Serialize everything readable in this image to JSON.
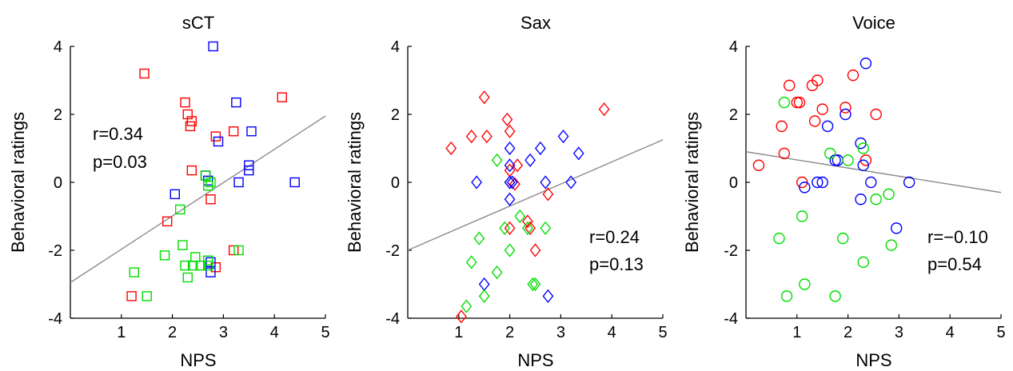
{
  "chart_data": [
    {
      "type": "scatter",
      "title": "sCT",
      "xlabel": "NPS",
      "ylabel": "Behavioral ratings",
      "xlim": [
        0,
        5
      ],
      "ylim": [
        -4,
        4
      ],
      "xticks": [
        "1",
        "2",
        "3",
        "4",
        "5"
      ],
      "yticks": [
        "-4",
        "-2",
        "0",
        "2",
        "4"
      ],
      "marker": "square",
      "annotation": [
        "r=0.34",
        "p=0.03"
      ],
      "fit_line": {
        "x": [
          0,
          5
        ],
        "y": [
          -2.95,
          1.95
        ]
      },
      "series": [
        {
          "color": "#ff0000",
          "points": [
            [
              1.45,
              3.2
            ],
            [
              2.25,
              2.35
            ],
            [
              2.3,
              2.0
            ],
            [
              2.35,
              1.65
            ],
            [
              2.38,
              1.8
            ],
            [
              3.2,
              1.5
            ],
            [
              2.85,
              1.35
            ],
            [
              4.15,
              2.5
            ],
            [
              2.38,
              0.35
            ],
            [
              2.75,
              -0.5
            ],
            [
              1.9,
              -1.15
            ],
            [
              3.2,
              -2.0
            ],
            [
              2.85,
              -2.5
            ],
            [
              1.2,
              -3.35
            ]
          ]
        },
        {
          "color": "#0000ff",
          "points": [
            [
              2.8,
              4.0
            ],
            [
              3.25,
              2.35
            ],
            [
              2.9,
              1.2
            ],
            [
              3.55,
              1.5
            ],
            [
              2.05,
              -0.35
            ],
            [
              2.65,
              0.2
            ],
            [
              2.7,
              0.05
            ],
            [
              3.3,
              0.0
            ],
            [
              3.5,
              0.35
            ],
            [
              3.5,
              0.5
            ],
            [
              4.4,
              0.0
            ],
            [
              2.75,
              -2.35
            ],
            [
              2.75,
              -2.65
            ]
          ]
        },
        {
          "color": "#00dd00",
          "points": [
            [
              2.15,
              -0.8
            ],
            [
              2.65,
              0.2
            ],
            [
              2.7,
              -0.1
            ],
            [
              2.75,
              0.0
            ],
            [
              1.85,
              -2.15
            ],
            [
              2.2,
              -1.85
            ],
            [
              2.45,
              -2.2
            ],
            [
              2.25,
              -2.45
            ],
            [
              2.4,
              -2.45
            ],
            [
              2.55,
              -2.45
            ],
            [
              2.7,
              -2.45
            ],
            [
              2.3,
              -2.8
            ],
            [
              2.7,
              -2.3
            ],
            [
              3.3,
              -2.0
            ],
            [
              1.25,
              -2.65
            ],
            [
              1.5,
              -3.35
            ]
          ]
        }
      ]
    },
    {
      "type": "scatter",
      "title": "Sax",
      "xlabel": "NPS",
      "ylabel": "Behavioral ratings",
      "xlim": [
        0,
        5
      ],
      "ylim": [
        -4,
        4
      ],
      "xticks": [
        "1",
        "2",
        "3",
        "4",
        "5"
      ],
      "yticks": [
        "-4",
        "-2",
        "0",
        "2",
        "4"
      ],
      "marker": "diamond",
      "annotation": [
        "r=0.24",
        "p=0.13"
      ],
      "fit_line": {
        "x": [
          0,
          5
        ],
        "y": [
          -2.0,
          1.25
        ]
      },
      "series": [
        {
          "color": "#ff0000",
          "points": [
            [
              1.5,
              2.5
            ],
            [
              1.95,
              1.85
            ],
            [
              2.0,
              1.5
            ],
            [
              1.55,
              1.35
            ],
            [
              1.25,
              1.35
            ],
            [
              0.85,
              1.0
            ],
            [
              2.15,
              0.5
            ],
            [
              2.0,
              0.35
            ],
            [
              2.0,
              0.0
            ],
            [
              2.1,
              -0.05
            ],
            [
              2.75,
              -0.35
            ],
            [
              2.35,
              -1.15
            ],
            [
              2.4,
              -1.35
            ],
            [
              2.0,
              -1.35
            ],
            [
              2.5,
              -2.0
            ],
            [
              3.85,
              2.15
            ],
            [
              1.05,
              -3.95
            ]
          ]
        },
        {
          "color": "#0000ff",
          "points": [
            [
              2.0,
              1.0
            ],
            [
              2.0,
              0.5
            ],
            [
              2.0,
              0.0
            ],
            [
              2.05,
              0.0
            ],
            [
              2.0,
              -0.5
            ],
            [
              1.35,
              0.0
            ],
            [
              2.4,
              0.65
            ],
            [
              2.6,
              1.0
            ],
            [
              3.05,
              1.35
            ],
            [
              3.35,
              0.85
            ],
            [
              2.7,
              0.0
            ],
            [
              3.2,
              0.0
            ],
            [
              1.5,
              -3.0
            ],
            [
              2.75,
              -3.35
            ]
          ]
        },
        {
          "color": "#00dd00",
          "points": [
            [
              1.75,
              0.65
            ],
            [
              2.2,
              -1.0
            ],
            [
              1.9,
              -1.35
            ],
            [
              2.35,
              -1.35
            ],
            [
              2.7,
              -1.35
            ],
            [
              1.4,
              -1.65
            ],
            [
              2.0,
              -2.0
            ],
            [
              1.75,
              -2.65
            ],
            [
              1.25,
              -2.35
            ],
            [
              2.45,
              -3.0
            ],
            [
              2.5,
              -3.0
            ],
            [
              1.5,
              -3.35
            ],
            [
              1.15,
              -3.65
            ]
          ]
        }
      ]
    },
    {
      "type": "scatter",
      "title": "Voice",
      "xlabel": "NPS",
      "ylabel": "Behavioral ratings",
      "xlim": [
        0,
        5
      ],
      "ylim": [
        -4,
        4
      ],
      "xticks": [
        "1",
        "2",
        "3",
        "4",
        "5"
      ],
      "yticks": [
        "-4",
        "-2",
        "0",
        "2",
        "4"
      ],
      "marker": "circle",
      "annotation": [
        "r=−0.10",
        "p=0.54"
      ],
      "fit_line": {
        "x": [
          0,
          5
        ],
        "y": [
          0.9,
          -0.3
        ]
      },
      "series": [
        {
          "color": "#ff0000",
          "points": [
            [
              0.85,
              2.85
            ],
            [
              1.0,
              2.35
            ],
            [
              1.05,
              2.35
            ],
            [
              1.3,
              2.85
            ],
            [
              1.4,
              3.0
            ],
            [
              1.5,
              2.15
            ],
            [
              2.1,
              3.15
            ],
            [
              1.95,
              2.2
            ],
            [
              2.55,
              2.0
            ],
            [
              1.35,
              1.8
            ],
            [
              0.7,
              1.65
            ],
            [
              0.75,
              0.85
            ],
            [
              0.25,
              0.5
            ],
            [
              1.1,
              0.0
            ],
            [
              2.35,
              0.65
            ]
          ]
        },
        {
          "color": "#0000ff",
          "points": [
            [
              2.35,
              3.5
            ],
            [
              1.6,
              1.65
            ],
            [
              1.95,
              2.0
            ],
            [
              2.25,
              1.15
            ],
            [
              1.75,
              0.65
            ],
            [
              1.8,
              0.65
            ],
            [
              2.3,
              0.5
            ],
            [
              1.4,
              0.0
            ],
            [
              1.5,
              0.0
            ],
            [
              2.45,
              0.0
            ],
            [
              3.2,
              0.0
            ],
            [
              1.15,
              -0.15
            ],
            [
              2.25,
              -0.5
            ],
            [
              2.95,
              -1.35
            ]
          ]
        },
        {
          "color": "#00dd00",
          "points": [
            [
              0.75,
              2.35
            ],
            [
              1.65,
              0.85
            ],
            [
              2.0,
              0.65
            ],
            [
              2.3,
              1.0
            ],
            [
              1.1,
              -1.0
            ],
            [
              2.55,
              -0.5
            ],
            [
              2.8,
              -0.35
            ],
            [
              0.65,
              -1.65
            ],
            [
              1.9,
              -1.65
            ],
            [
              2.85,
              -1.85
            ],
            [
              2.3,
              -2.35
            ],
            [
              1.15,
              -3.0
            ],
            [
              0.8,
              -3.35
            ],
            [
              1.75,
              -3.35
            ]
          ]
        }
      ]
    }
  ]
}
